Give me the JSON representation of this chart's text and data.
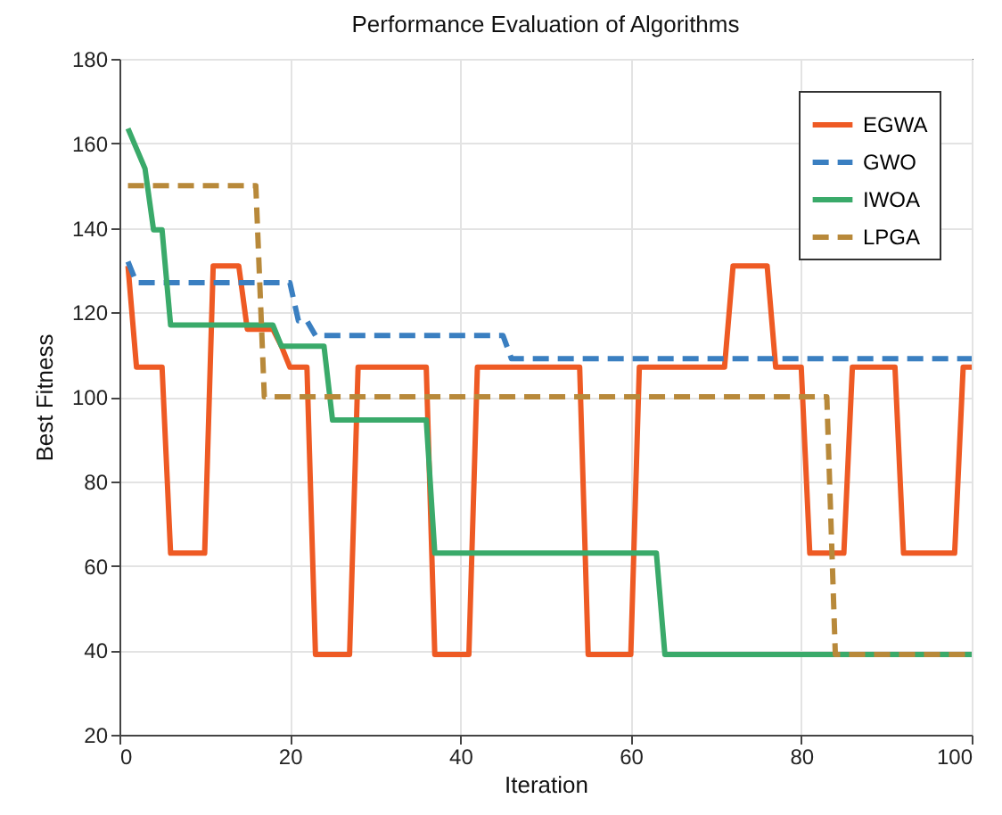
{
  "chart_data": {
    "type": "line",
    "title": "Performance Evaluation of Algorithms",
    "xlabel": "Iteration",
    "ylabel": "Best Fitness",
    "xlim": [
      0,
      100
    ],
    "xticks": [
      0,
      20,
      40,
      60,
      80,
      100
    ],
    "ylim": [
      20,
      180
    ],
    "yticks": [
      20,
      40,
      60,
      80,
      100,
      120,
      140,
      160,
      180
    ],
    "grid": true,
    "legend": "top right",
    "marker": "none",
    "series": [
      {
        "name": "EGWA",
        "color": "#ee5a24",
        "line_style": "solid",
        "x": [
          1,
          2,
          5,
          6,
          10,
          11,
          14,
          15,
          18,
          19,
          20,
          22,
          23,
          27,
          28,
          36,
          37,
          41,
          42,
          54,
          55,
          60,
          61,
          71,
          72,
          76,
          77,
          80,
          81,
          85,
          86,
          91,
          92,
          98,
          99,
          100
        ],
        "values": [
          131,
          107,
          107,
          63,
          63,
          131,
          131,
          116,
          116,
          112,
          107,
          107,
          39,
          39,
          107,
          107,
          39,
          39,
          107,
          107,
          39,
          39,
          107,
          107,
          131,
          131,
          107,
          107,
          63,
          63,
          107,
          107,
          63,
          63,
          107,
          107
        ]
      },
      {
        "name": "GWO",
        "color": "#3a7fc1",
        "line_style": "dashed",
        "x": [
          1,
          2,
          20,
          21,
          22,
          23,
          45,
          46,
          100
        ],
        "values": [
          132,
          127,
          127,
          118,
          118,
          114.5,
          114.5,
          109,
          109
        ]
      },
      {
        "name": "IWOA",
        "color": "#3aaa6a",
        "line_style": "solid",
        "x": [
          1,
          3,
          4,
          5,
          6,
          18,
          19,
          24,
          25,
          36,
          37,
          63,
          64,
          100
        ],
        "values": [
          163.5,
          154,
          139.5,
          139.5,
          117,
          117,
          112,
          112,
          94.5,
          94.5,
          63,
          63,
          39,
          39
        ]
      },
      {
        "name": "LPGA",
        "color": "#b8893a",
        "line_style": "dashed",
        "x": [
          1,
          16,
          17,
          83,
          84,
          100
        ],
        "values": [
          150,
          150,
          100,
          100,
          39,
          39
        ]
      }
    ]
  }
}
